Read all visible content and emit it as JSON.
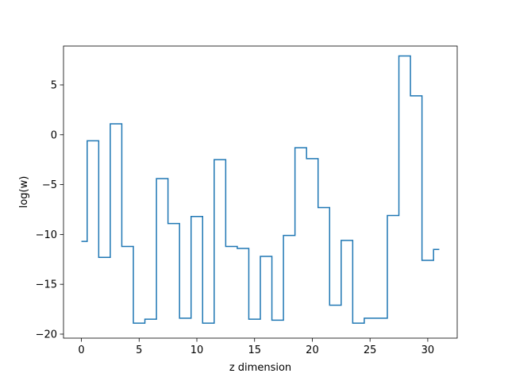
{
  "chart_data": {
    "type": "line",
    "drawstyle": "steps-mid",
    "title": "",
    "xlabel": "z dimension",
    "ylabel": "log(w)",
    "xlim": [
      -1.55,
      32.55
    ],
    "ylim": [
      -20.4,
      8.9
    ],
    "xticks": [
      0,
      5,
      10,
      15,
      20,
      25,
      30
    ],
    "yticks": [
      -20,
      -15,
      -10,
      -5,
      0,
      5
    ],
    "grid": false,
    "series_color": "#1f77b4",
    "series": [
      {
        "x": [
          0,
          1,
          2,
          3,
          4,
          5,
          6,
          7,
          8,
          9,
          10,
          11,
          12,
          13,
          14,
          15,
          16,
          17,
          18,
          19,
          20,
          21,
          22,
          23,
          24,
          25,
          26,
          27,
          28,
          29,
          30,
          31
        ],
        "values": [
          -10.7,
          -0.6,
          -12.3,
          1.1,
          -11.2,
          -18.9,
          -18.5,
          -4.4,
          -8.9,
          -18.4,
          -8.2,
          -18.9,
          -2.5,
          -11.2,
          -11.4,
          -18.5,
          -12.2,
          -18.6,
          -10.1,
          -1.3,
          -2.4,
          -7.3,
          -17.1,
          -10.6,
          -18.9,
          -18.4,
          -18.4,
          -8.1,
          7.9,
          3.9,
          -12.6,
          -11.5
        ]
      }
    ]
  }
}
